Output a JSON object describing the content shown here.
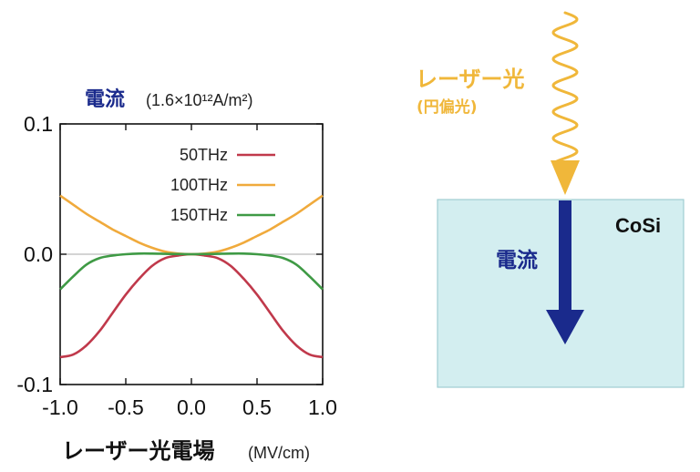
{
  "chart_data": {
    "type": "line",
    "title": "電流",
    "title_unit": "(1.6×10¹²A/m²)",
    "xlabel": "レーザー光電場",
    "xlabel_unit": "(MV/cm)",
    "xlim": [
      -1.0,
      1.0
    ],
    "ylim": [
      -0.1,
      0.1
    ],
    "x_ticks": [
      "-1.0",
      "-0.5",
      "0.0",
      "0.5",
      "1.0"
    ],
    "y_ticks": [
      "0.1",
      "0.0",
      "-0.1"
    ],
    "legend_position": "top-right",
    "x": [
      -1.0,
      -0.9,
      -0.8,
      -0.7,
      -0.6,
      -0.5,
      -0.4,
      -0.3,
      -0.2,
      -0.1,
      0.0,
      0.1,
      0.2,
      0.3,
      0.4,
      0.5,
      0.6,
      0.7,
      0.8,
      0.9,
      1.0
    ],
    "series": [
      {
        "name": "50THz",
        "color": "#c0394b",
        "values": [
          -0.079,
          -0.077,
          -0.07,
          -0.059,
          -0.045,
          -0.031,
          -0.019,
          -0.009,
          -0.003,
          -0.001,
          0.0,
          -0.001,
          -0.003,
          -0.009,
          -0.019,
          -0.031,
          -0.045,
          -0.059,
          -0.07,
          -0.077,
          -0.079
        ]
      },
      {
        "name": "100THz",
        "color": "#f0aa3c",
        "values": [
          0.045,
          0.038,
          0.031,
          0.025,
          0.019,
          0.014,
          0.009,
          0.005,
          0.002,
          0.0005,
          0.0,
          0.0005,
          0.002,
          0.005,
          0.009,
          0.014,
          0.019,
          0.025,
          0.031,
          0.038,
          0.045
        ]
      },
      {
        "name": "150THz",
        "color": "#3f9a45",
        "values": [
          -0.027,
          -0.017,
          -0.008,
          -0.003,
          -0.001,
          0.0,
          0.0005,
          0.0005,
          0.0003,
          0.0001,
          0.0,
          0.0001,
          0.0003,
          0.0005,
          0.0005,
          0.0,
          -0.001,
          -0.003,
          -0.008,
          -0.017,
          -0.027
        ]
      }
    ]
  },
  "diagram": {
    "laser_label": "レーザー光",
    "laser_sublabel": "(円偏光)",
    "current_label": "電流",
    "material_label": "CoSi",
    "colors": {
      "laser": "#f0b73a",
      "current_arrow": "#1a2a8c",
      "material_fill": "#d3eef0",
      "material_border": "#9fcdd2"
    },
    "icons": [
      "wavy-laser-beam",
      "down-arrow"
    ]
  }
}
